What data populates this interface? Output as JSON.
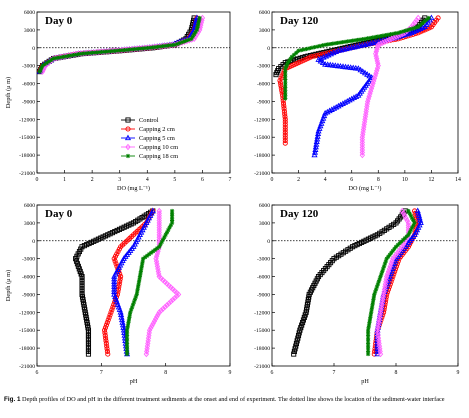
{
  "series_styles": [
    {
      "key": "control",
      "color": "#000000",
      "marker": "square"
    },
    {
      "key": "c2",
      "color": "#ff0000",
      "marker": "circle"
    },
    {
      "key": "c5",
      "color": "#0000ff",
      "marker": "triangle"
    },
    {
      "key": "c10",
      "color": "#ff66ff",
      "marker": "diamond"
    },
    {
      "key": "c18",
      "color": "#008000",
      "marker": "star"
    }
  ],
  "chart_data": [
    {
      "type": "line",
      "title": "Day 0",
      "xlabel": "DO (mg L⁻¹)",
      "ylabel": "Depth (μ m)",
      "xlim": [
        0,
        7
      ],
      "ylim": [
        -21000,
        6000
      ],
      "xticks": [
        0,
        1,
        2,
        3,
        4,
        5,
        6,
        7
      ],
      "yticks": [
        -21000,
        -18000,
        -15000,
        -12000,
        -9000,
        -6000,
        -3000,
        0,
        3000,
        6000
      ],
      "reference_line_y": 0,
      "legend": [
        "Control",
        "Capping 2 cm",
        "Capping 5 cm",
        "Capping 10 cm",
        "Capping 18 cm"
      ],
      "legend_position": "center-right",
      "series": [
        {
          "name": "Control",
          "x": [
            5.7,
            5.6,
            5.4,
            5.0,
            4.2,
            3.0,
            1.6,
            0.6,
            0.2,
            0.1
          ],
          "y": [
            5000,
            3000,
            1500,
            500,
            0,
            -500,
            -1000,
            -1800,
            -3000,
            -4000
          ]
        },
        {
          "name": "Capping 2 cm",
          "x": [
            5.8,
            5.7,
            5.5,
            5.0,
            4.1,
            2.9,
            1.5,
            0.6,
            0.2,
            0.1
          ],
          "y": [
            5000,
            3000,
            1500,
            500,
            0,
            -500,
            -1000,
            -1800,
            -3000,
            -4000
          ]
        },
        {
          "name": "Capping 5 cm",
          "x": [
            5.8,
            5.7,
            5.5,
            4.9,
            4.0,
            2.8,
            1.5,
            0.6,
            0.2,
            0.1
          ],
          "y": [
            5000,
            3000,
            1500,
            500,
            0,
            -500,
            -1000,
            -1800,
            -3000,
            -4000
          ]
        },
        {
          "name": "Capping 10 cm",
          "x": [
            6.0,
            5.9,
            5.7,
            5.0,
            4.0,
            2.8,
            1.5,
            0.6,
            0.3,
            0.2
          ],
          "y": [
            5000,
            3000,
            1500,
            500,
            0,
            -500,
            -1000,
            -1800,
            -3000,
            -4000
          ]
        },
        {
          "name": "Capping 18 cm",
          "x": [
            5.9,
            5.8,
            5.6,
            5.0,
            4.1,
            2.9,
            1.6,
            0.6,
            0.2,
            0.1
          ],
          "y": [
            5000,
            3000,
            1500,
            500,
            0,
            -500,
            -1000,
            -1800,
            -3000,
            -4000
          ]
        }
      ]
    },
    {
      "type": "line",
      "title": "Day 120",
      "xlabel": "DO (mg L⁻¹)",
      "ylabel": "",
      "xlim": [
        0,
        14
      ],
      "ylim": [
        -21000,
        6000
      ],
      "xticks": [
        0,
        2,
        4,
        6,
        8,
        10,
        12,
        14
      ],
      "yticks": [
        -21000,
        -18000,
        -15000,
        -12000,
        -9000,
        -6000,
        -3000,
        0,
        3000,
        6000
      ],
      "reference_line_y": 0,
      "series": [
        {
          "name": "Control",
          "x": [
            11.5,
            11.0,
            10.0,
            8.5,
            6.5,
            4.5,
            2.5,
            1.0,
            0.5,
            0.3
          ],
          "y": [
            5000,
            3500,
            2500,
            1500,
            500,
            -500,
            -1500,
            -2500,
            -3500,
            -4500
          ]
        },
        {
          "name": "Capping 2 cm",
          "x": [
            12.5,
            12.0,
            11.0,
            9.5,
            7.0,
            5.0,
            3.0,
            2.0,
            1.0,
            0.6,
            0.8,
            1.0,
            1.0
          ],
          "y": [
            5000,
            3500,
            2500,
            1500,
            500,
            -500,
            -1500,
            -2500,
            -3500,
            -5500,
            -8000,
            -12000,
            -16000
          ]
        },
        {
          "name": "Capping 5 cm",
          "x": [
            12.0,
            11.5,
            10.5,
            9.0,
            7.0,
            5.0,
            3.5,
            4.0,
            6.5,
            7.5,
            6.5,
            4.0,
            3.5,
            3.2
          ],
          "y": [
            5000,
            3500,
            2500,
            1500,
            500,
            -500,
            -2000,
            -2800,
            -3500,
            -5000,
            -8000,
            -11000,
            -14000,
            -18000
          ]
        },
        {
          "name": "Capping 10 cm",
          "x": [
            11.0,
            10.5,
            10.0,
            9.0,
            8.0,
            7.8,
            8.0,
            7.6,
            7.2,
            7.0,
            6.8,
            6.8
          ],
          "y": [
            5000,
            3500,
            2500,
            1500,
            500,
            -1000,
            -3000,
            -6000,
            -9000,
            -12000,
            -15000,
            -18000
          ]
        },
        {
          "name": "Capping 18 cm",
          "x": [
            11.8,
            11.0,
            9.5,
            7.0,
            4.0,
            2.0,
            1.5,
            1.2,
            1.0,
            1.0
          ],
          "y": [
            5000,
            3500,
            2500,
            1500,
            500,
            -500,
            -1500,
            -2500,
            -3500,
            -8500
          ]
        }
      ]
    },
    {
      "type": "line",
      "title": "Day 0",
      "xlabel": "pH",
      "ylabel": "Depth (μ m)",
      "xlim": [
        6,
        9
      ],
      "ylim": [
        -21000,
        6000
      ],
      "xticks": [
        6,
        7,
        8,
        9
      ],
      "yticks": [
        -21000,
        -18000,
        -15000,
        -12000,
        -9000,
        -6000,
        -3000,
        0,
        3000,
        6000
      ],
      "reference_line_y": 0,
      "series": [
        {
          "name": "Control",
          "x": [
            7.8,
            7.5,
            7.1,
            6.7,
            6.6,
            6.7,
            6.7,
            6.75,
            6.8,
            6.8
          ],
          "y": [
            5000,
            3000,
            1000,
            -1000,
            -3000,
            -6000,
            -9000,
            -12000,
            -15000,
            -19000
          ]
        },
        {
          "name": "Capping 2 cm",
          "x": [
            7.8,
            7.7,
            7.5,
            7.3,
            7.2,
            7.3,
            7.25,
            7.15,
            7.05,
            7.1
          ],
          "y": [
            5000,
            3000,
            1000,
            -1000,
            -3000,
            -6000,
            -9000,
            -12000,
            -15000,
            -19000
          ]
        },
        {
          "name": "Capping 5 cm",
          "x": [
            7.8,
            7.7,
            7.6,
            7.5,
            7.35,
            7.2,
            7.2,
            7.3,
            7.35,
            7.4
          ],
          "y": [
            5000,
            3000,
            1000,
            -1000,
            -3000,
            -6000,
            -9000,
            -12000,
            -15000,
            -19000
          ]
        },
        {
          "name": "Capping 10 cm",
          "x": [
            7.9,
            7.9,
            7.9,
            7.9,
            7.85,
            7.9,
            8.2,
            7.9,
            7.75,
            7.7
          ],
          "y": [
            5000,
            3000,
            1000,
            -1000,
            -3000,
            -6000,
            -9000,
            -12000,
            -15000,
            -19000
          ]
        },
        {
          "name": "Capping 18 cm",
          "x": [
            8.1,
            8.1,
            8.0,
            7.9,
            7.65,
            7.6,
            7.55,
            7.45,
            7.4,
            7.4
          ],
          "y": [
            5000,
            3000,
            1000,
            -1000,
            -3000,
            -6000,
            -9000,
            -12000,
            -15000,
            -19000
          ]
        }
      ]
    },
    {
      "type": "line",
      "title": "Day 120",
      "xlabel": "pH",
      "ylabel": "",
      "xlim": [
        6,
        9
      ],
      "ylim": [
        -21000,
        6000
      ],
      "xticks": [
        6,
        7,
        8,
        9
      ],
      "yticks": [
        -21000,
        -18000,
        -15000,
        -12000,
        -9000,
        -6000,
        -3000,
        0,
        3000,
        6000
      ],
      "reference_line_y": 0,
      "series": [
        {
          "name": "Control",
          "x": [
            8.15,
            8.0,
            7.7,
            7.3,
            7.0,
            6.75,
            6.6,
            6.55,
            6.45,
            6.35
          ],
          "y": [
            5000,
            3000,
            1000,
            -1000,
            -3000,
            -6000,
            -9000,
            -12000,
            -15000,
            -19000
          ]
        },
        {
          "name": "Capping 2 cm",
          "x": [
            8.3,
            8.35,
            8.3,
            8.2,
            8.05,
            7.95,
            7.85,
            7.8,
            7.7,
            7.65
          ],
          "y": [
            5000,
            3000,
            1000,
            -1000,
            -3000,
            -6000,
            -9000,
            -12000,
            -15000,
            -19000
          ]
        },
        {
          "name": "Capping 5 cm",
          "x": [
            8.35,
            8.4,
            8.3,
            8.15,
            8.0,
            7.9,
            7.8,
            7.75,
            7.7,
            7.7
          ],
          "y": [
            5000,
            3000,
            1000,
            -1000,
            -3000,
            -6000,
            -9000,
            -12000,
            -15000,
            -19000
          ]
        },
        {
          "name": "Capping 10 cm",
          "x": [
            8.1,
            8.2,
            8.2,
            8.1,
            7.95,
            7.85,
            7.8,
            7.75,
            7.7,
            7.75
          ],
          "y": [
            5000,
            3000,
            1000,
            -1000,
            -3000,
            -6000,
            -9000,
            -12000,
            -15000,
            -19000
          ]
        },
        {
          "name": "Capping 18 cm",
          "x": [
            8.2,
            8.3,
            8.2,
            8.0,
            7.85,
            7.75,
            7.65,
            7.6,
            7.55,
            7.55
          ],
          "y": [
            5000,
            3000,
            1000,
            -1000,
            -3000,
            -6000,
            -9000,
            -12000,
            -15000,
            -19000
          ]
        }
      ]
    }
  ],
  "caption": {
    "label": "Fig. 1",
    "text": "  Depth profiles of DO and pH in the different treatment sediments at the onset and end of experiment. The dotted line shows the location of the sediment-water interface"
  }
}
